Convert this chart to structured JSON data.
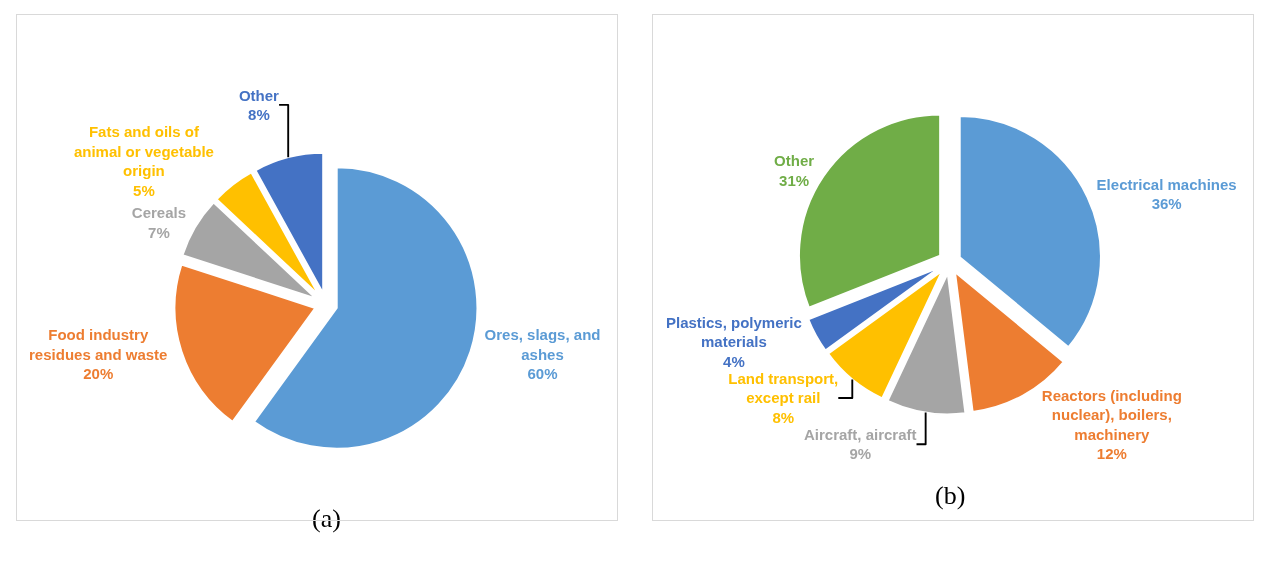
{
  "chart_data": [
    {
      "type": "pie",
      "categories": [
        "Ores, slags, and ashes",
        "Food industry residues and waste",
        "Cereals",
        "Fats and oils of animal or vegetable origin",
        "Other"
      ],
      "values": [
        60,
        20,
        7,
        5,
        8
      ],
      "value_labels": [
        "60%",
        "20%",
        "7%",
        "5%",
        "8%"
      ],
      "colors": [
        "#5b9bd5",
        "#ed7d31",
        "#a5a5a5",
        "#ffc000",
        "#4472c4"
      ],
      "legend": false,
      "annotations": [
        "(a)"
      ]
    },
    {
      "type": "pie",
      "categories": [
        "Electrical machines",
        "Reactors (including nuclear), boilers, machinery",
        "Aircraft, aircraft",
        "Land transport, except rail",
        "Plastics, polymeric materials",
        "Other"
      ],
      "values": [
        36,
        12,
        9,
        8,
        4,
        31
      ],
      "value_labels": [
        "36%",
        "12%",
        "9%",
        "8%",
        "4%",
        "31%"
      ],
      "colors": [
        "#5b9bd5",
        "#ed7d31",
        "#a5a5a5",
        "#ffc000",
        "#4472c4",
        "#70ad47"
      ],
      "legend": false,
      "annotations": [
        "(b)"
      ]
    }
  ]
}
